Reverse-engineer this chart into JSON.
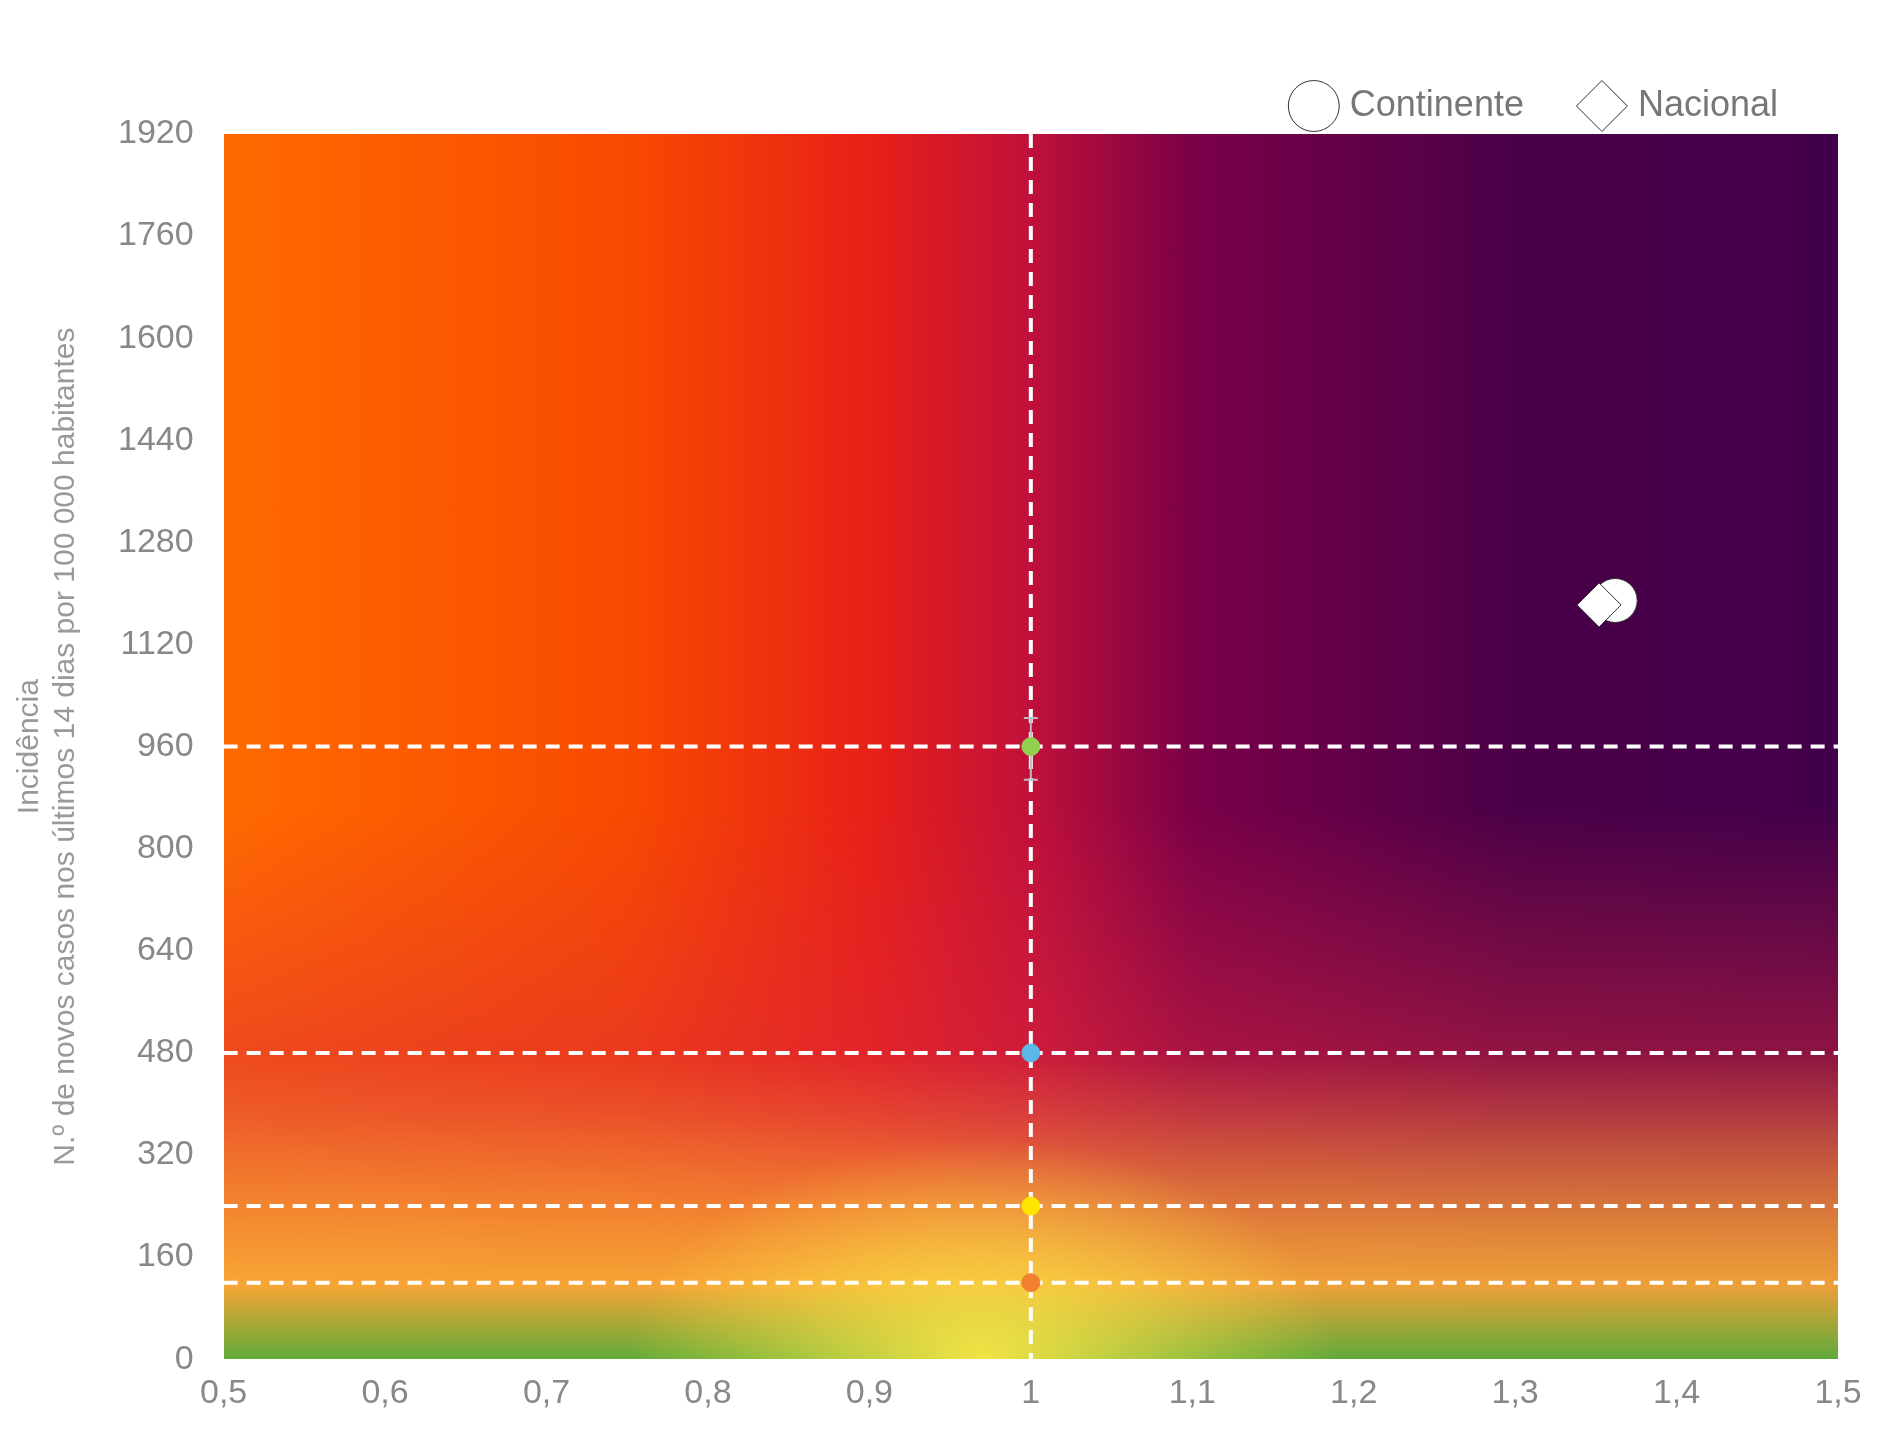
{
  "chart_data": {
    "type": "scatter",
    "ylabel": "Incidência\nN.º de novos casos nos últimos 14 dias por 100 000 habitantes",
    "xlim": [
      0.5,
      1.5
    ],
    "ylim": [
      0,
      1920
    ],
    "xticks": [
      {
        "value": 0.5,
        "label": "0,5"
      },
      {
        "value": 0.6,
        "label": "0,6"
      },
      {
        "value": 0.7,
        "label": "0,7"
      },
      {
        "value": 0.8,
        "label": "0,8"
      },
      {
        "value": 0.9,
        "label": "0,9"
      },
      1,
      {
        "value": 1.1,
        "label": "1,1"
      },
      {
        "value": 1.2,
        "label": "1,2"
      },
      {
        "value": 1.3,
        "label": "1,3"
      },
      {
        "value": 1.4,
        "label": "1,4"
      },
      {
        "value": 1.5,
        "label": "1,5"
      }
    ],
    "yticks": [
      0,
      160,
      320,
      480,
      640,
      800,
      960,
      1120,
      1280,
      1440,
      1600,
      1760,
      1920
    ],
    "grid": false,
    "legend": "top right",
    "series": [
      {
        "name": "Continente",
        "color": "#ffffff",
        "marker": "circle",
        "x": [
          1.362
        ],
        "values": [
          1189
        ]
      },
      {
        "name": "Nacional",
        "color": "#ffffff",
        "marker": "diamond",
        "x": [
          1.352
        ],
        "values": [
          1182
        ]
      },
      {
        "type": "scatter",
        "marker": "circle",
        "x": [
          1,
          1,
          1,
          1
        ],
        "values": [
          960,
          480,
          240,
          120
        ],
        "colors": [
          "#92d050",
          "#5bb8e8",
          "#ffe600",
          "#f08030"
        ],
        "errors": [
          [
            908,
            1005
          ],
          null,
          null,
          null
        ]
      }
    ],
    "ref_lines": [
      {
        "axis": "x",
        "value": 1,
        "color": "#ffffff",
        "line_style": "dashed"
      },
      {
        "axis": "y",
        "value": 960,
        "color": "#ffffff",
        "line_style": "dashed"
      },
      {
        "axis": "y",
        "value": 480,
        "color": "#ffffff",
        "line_style": "dashed"
      },
      {
        "axis": "y",
        "value": 240,
        "color": "#ffffff",
        "line_style": "dashed"
      },
      {
        "axis": "y",
        "value": 120,
        "color": "#ffffff",
        "line_style": "dashed"
      }
    ]
  }
}
